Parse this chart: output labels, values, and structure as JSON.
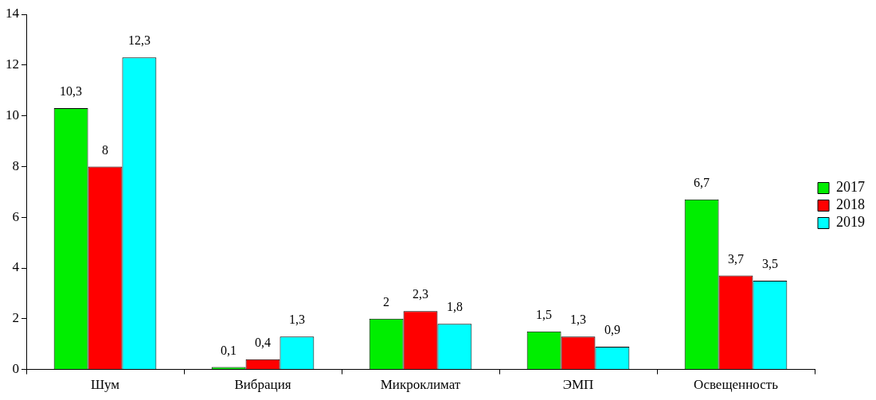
{
  "chart_data": {
    "type": "bar",
    "categories": [
      "Шум",
      "Вибрация",
      "Микроклимат",
      "ЭМП",
      "Освещенность"
    ],
    "series": [
      {
        "name": "2017",
        "color": "#00ee00",
        "values": [
          10.3,
          0.1,
          2,
          1.5,
          6.7
        ],
        "value_labels": [
          "10,3",
          "0,1",
          "2",
          "1,5",
          "6,7"
        ]
      },
      {
        "name": "2018",
        "color": "#ff0000",
        "values": [
          8,
          0.4,
          2.3,
          1.3,
          3.7
        ],
        "value_labels": [
          "8",
          "0,4",
          "2,3",
          "1,3",
          "3,7"
        ]
      },
      {
        "name": "2019",
        "color": "#00ffff",
        "values": [
          12.3,
          1.3,
          1.8,
          0.9,
          3.5
        ],
        "value_labels": [
          "12,3",
          "1,3",
          "1,8",
          "0,9",
          "3,5"
        ]
      }
    ],
    "ylim": [
      0,
      14
    ],
    "yticks": [
      0,
      2,
      4,
      6,
      8,
      10,
      12,
      14
    ],
    "grid": false,
    "legend": "right"
  }
}
